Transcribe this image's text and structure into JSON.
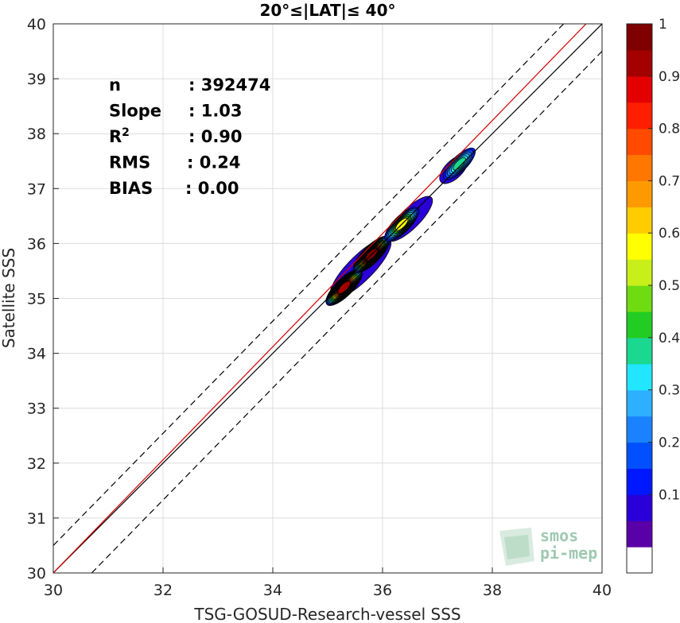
{
  "chart_data": {
    "type": "heatmap",
    "title": "20°≤|LAT|≤ 40°",
    "xlabel": "TSG-GOSUD-Research-vessel SSS",
    "ylabel": "Satellite SSS",
    "xlim": [
      30,
      40
    ],
    "ylim": [
      30,
      40
    ],
    "xticks": [
      "30",
      "32",
      "34",
      "36",
      "38",
      "40"
    ],
    "yticks": [
      "30",
      "31",
      "32",
      "33",
      "34",
      "35",
      "36",
      "37",
      "38",
      "39",
      "40"
    ],
    "grid": true,
    "stats": [
      {
        "label": "n",
        "value": ": 392474"
      },
      {
        "label": "Slope",
        "value": ": 1.03"
      },
      {
        "label": "R",
        "sup": "2",
        "value": ": 0.90"
      },
      {
        "label": "RMS",
        "value": ": 0.24"
      },
      {
        "label": "BIAS",
        "value": ": 0.00"
      }
    ],
    "lines": [
      {
        "name": "one-to-one",
        "color": "#000000",
        "style": "solid",
        "points": [
          [
            30,
            30
          ],
          [
            40,
            40
          ]
        ]
      },
      {
        "name": "upper-bound",
        "color": "#000000",
        "style": "dashed",
        "points": [
          [
            30,
            30.5
          ],
          [
            39.3,
            40
          ]
        ]
      },
      {
        "name": "lower-bound",
        "color": "#000000",
        "style": "dashed",
        "points": [
          [
            30.7,
            30
          ],
          [
            40,
            39.5
          ]
        ]
      },
      {
        "name": "regression",
        "color": "#d40000",
        "style": "solid",
        "points": [
          [
            30,
            30.0
          ],
          [
            40,
            40.3
          ]
        ]
      }
    ],
    "density_blobs": [
      {
        "x": 35.3,
        "y": 35.2,
        "peak": 0.92
      },
      {
        "x": 35.8,
        "y": 35.8,
        "peak": 0.97
      },
      {
        "x": 36.35,
        "y": 36.35,
        "peak": 0.55
      },
      {
        "x": 37.4,
        "y": 37.45,
        "peak": 0.38
      }
    ],
    "colorbar": {
      "ticks": [
        "0.1",
        "0.2",
        "0.3",
        "0.4",
        "0.5",
        "0.6",
        "0.7",
        "0.8",
        "0.9",
        "1"
      ],
      "levels": [
        0.05,
        0.1,
        0.15,
        0.2,
        0.25,
        0.3,
        0.35,
        0.4,
        0.45,
        0.5,
        0.55,
        0.6,
        0.65,
        0.7,
        0.75,
        0.8,
        0.85,
        0.9,
        0.95
      ],
      "colors": [
        "#5a00a8",
        "#2a00d8",
        "#0018ff",
        "#0050ff",
        "#1a82ff",
        "#2cb0ff",
        "#22e6ff",
        "#1ad890",
        "#22cc22",
        "#6fdc11",
        "#c8ef1a",
        "#ffff00",
        "#ffcc00",
        "#ff9900",
        "#ff7700",
        "#ff4a00",
        "#ff1e00",
        "#e40000",
        "#a40000",
        "#7f0000"
      ]
    }
  },
  "logo": {
    "line1": "smos",
    "line2": "pi-mep"
  }
}
